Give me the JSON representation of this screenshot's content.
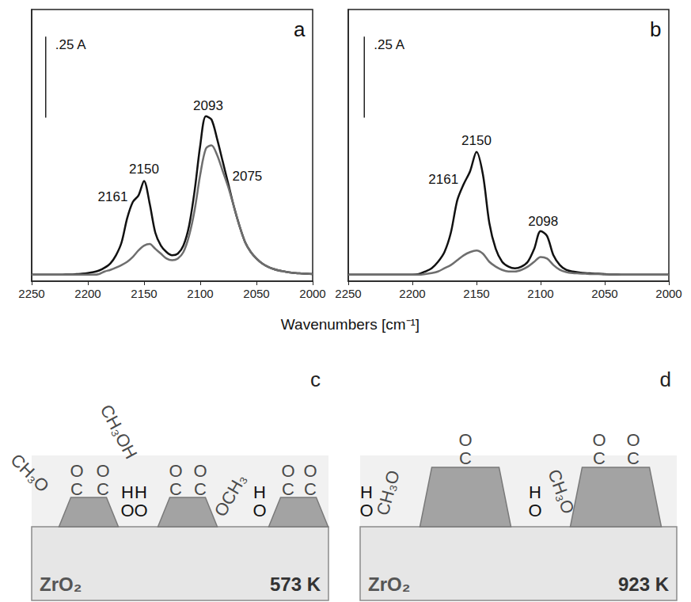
{
  "figure": {
    "xlabel": "Wavenumbers [cm⁻¹]"
  },
  "chart_data": [
    {
      "type": "line",
      "letter": "a",
      "x": [
        2250,
        2245,
        2240,
        2235,
        2230,
        2225,
        2220,
        2215,
        2210,
        2205,
        2200,
        2195,
        2190,
        2185,
        2180,
        2175,
        2170,
        2165,
        2160,
        2155,
        2150,
        2145,
        2140,
        2135,
        2130,
        2125,
        2120,
        2115,
        2110,
        2105,
        2100,
        2095,
        2090,
        2085,
        2080,
        2075,
        2070,
        2065,
        2060,
        2055,
        2050,
        2045,
        2040,
        2035,
        2030,
        2025,
        2020,
        2015,
        2010,
        2005,
        2000
      ],
      "series": [
        {
          "color": "#111111",
          "values": [
            0.02,
            0.02,
            0.02,
            0.02,
            0.02,
            0.02,
            0.021,
            0.021,
            0.022,
            0.023,
            0.025,
            0.028,
            0.033,
            0.042,
            0.055,
            0.08,
            0.12,
            0.195,
            0.245,
            0.265,
            0.31,
            0.24,
            0.15,
            0.11,
            0.09,
            0.08,
            0.085,
            0.11,
            0.17,
            0.28,
            0.42,
            0.51,
            0.5,
            0.44,
            0.37,
            0.3,
            0.23,
            0.17,
            0.12,
            0.09,
            0.07,
            0.055,
            0.045,
            0.038,
            0.033,
            0.03,
            0.027,
            0.025,
            0.024,
            0.023,
            0.022
          ]
        },
        {
          "color": "#6e6e6e",
          "values": [
            0.02,
            0.02,
            0.02,
            0.02,
            0.02,
            0.02,
            0.02,
            0.02,
            0.02,
            0.02,
            0.02,
            0.02,
            0.022,
            0.03,
            0.035,
            0.042,
            0.05,
            0.06,
            0.075,
            0.095,
            0.11,
            0.115,
            0.1,
            0.085,
            0.07,
            0.065,
            0.07,
            0.09,
            0.14,
            0.22,
            0.33,
            0.41,
            0.42,
            0.39,
            0.34,
            0.29,
            0.23,
            0.17,
            0.12,
            0.09,
            0.07,
            0.055,
            0.045,
            0.038,
            0.033,
            0.03,
            0.027,
            0.025,
            0.024,
            0.023,
            0.022
          ]
        }
      ],
      "xlim": [
        2250,
        2000
      ],
      "xticks": [
        2250,
        2200,
        2150,
        2100,
        2050,
        2000
      ],
      "ylim": [
        0,
        0.84
      ],
      "tick_labels": "x",
      "scale_bar": {
        "value": 0.25,
        "label": ".25 A"
      },
      "annotations": [
        {
          "text": "2161",
          "x": 2161
        },
        {
          "text": "2150",
          "x": 2150
        },
        {
          "text": "2093",
          "x": 2093
        },
        {
          "text": "2075",
          "x": 2075
        }
      ]
    },
    {
      "type": "line",
      "letter": "b",
      "x": [
        2250,
        2245,
        2240,
        2235,
        2230,
        2225,
        2220,
        2215,
        2210,
        2205,
        2200,
        2195,
        2190,
        2185,
        2180,
        2175,
        2170,
        2165,
        2160,
        2155,
        2150,
        2145,
        2140,
        2135,
        2130,
        2125,
        2120,
        2115,
        2110,
        2105,
        2100,
        2095,
        2090,
        2085,
        2080,
        2075,
        2070,
        2065,
        2060,
        2055,
        2050,
        2045,
        2040,
        2035,
        2030,
        2025,
        2020,
        2015,
        2010,
        2005,
        2000
      ],
      "series": [
        {
          "color": "#111111",
          "values": [
            0.02,
            0.02,
            0.02,
            0.02,
            0.02,
            0.02,
            0.02,
            0.02,
            0.02,
            0.02,
            0.02,
            0.022,
            0.03,
            0.04,
            0.06,
            0.09,
            0.15,
            0.25,
            0.3,
            0.34,
            0.4,
            0.33,
            0.18,
            0.1,
            0.06,
            0.045,
            0.04,
            0.045,
            0.06,
            0.1,
            0.155,
            0.14,
            0.08,
            0.05,
            0.035,
            0.03,
            0.027,
            0.025,
            0.024,
            0.023,
            0.022,
            0.021,
            0.021,
            0.02,
            0.02,
            0.02,
            0.02,
            0.02,
            0.02,
            0.02,
            0.02
          ]
        },
        {
          "color": "#6e6e6e",
          "values": [
            0.02,
            0.02,
            0.02,
            0.02,
            0.02,
            0.02,
            0.02,
            0.02,
            0.02,
            0.02,
            0.02,
            0.02,
            0.022,
            0.025,
            0.03,
            0.04,
            0.05,
            0.065,
            0.08,
            0.09,
            0.095,
            0.085,
            0.06,
            0.045,
            0.035,
            0.03,
            0.03,
            0.035,
            0.045,
            0.06,
            0.075,
            0.07,
            0.05,
            0.035,
            0.028,
            0.025,
            0.024,
            0.023,
            0.022,
            0.022,
            0.021,
            0.021,
            0.021,
            0.02,
            0.02,
            0.02,
            0.02,
            0.02,
            0.02,
            0.02,
            0.02
          ]
        }
      ],
      "xlim": [
        2250,
        2000
      ],
      "xticks": [
        2250,
        2200,
        2150,
        2100,
        2050,
        2000
      ],
      "ylim": [
        0,
        0.84
      ],
      "tick_labels": "x",
      "scale_bar": {
        "value": 0.25,
        "label": ".25 A"
      },
      "annotations": [
        {
          "text": "2161",
          "x": 2161
        },
        {
          "text": "2150",
          "x": 2150
        },
        {
          "text": "2098",
          "x": 2098
        }
      ]
    }
  ],
  "diagrams": [
    {
      "letter": "c",
      "support": "ZrO₂",
      "temperature": "573 K",
      "particles": 3,
      "species": [
        {
          "text": "CH₃O"
        },
        {
          "lines": [
            "O",
            "C"
          ]
        },
        {
          "lines": [
            "O",
            "C"
          ]
        },
        {
          "lines": [
            "H",
            "O"
          ]
        },
        {
          "lines": [
            "H",
            "O"
          ]
        },
        {
          "text": "CH₃OH"
        },
        {
          "lines": [
            "O",
            "C"
          ]
        },
        {
          "lines": [
            "O",
            "C"
          ]
        },
        {
          "text": "OCH₃"
        },
        {
          "lines": [
            "H",
            "O"
          ]
        },
        {
          "lines": [
            "O",
            "C"
          ]
        },
        {
          "lines": [
            "O",
            "C"
          ]
        }
      ]
    },
    {
      "letter": "d",
      "support": "ZrO₂",
      "temperature": "923 K",
      "particles": 2,
      "species": [
        {
          "lines": [
            "H",
            "O"
          ]
        },
        {
          "text": "CH₃O"
        },
        {
          "lines": [
            "O",
            "C"
          ]
        },
        {
          "lines": [
            "H",
            "O"
          ]
        },
        {
          "text": "CH₃O"
        },
        {
          "lines": [
            "O",
            "C"
          ]
        },
        {
          "lines": [
            "O",
            "C"
          ]
        }
      ]
    }
  ]
}
